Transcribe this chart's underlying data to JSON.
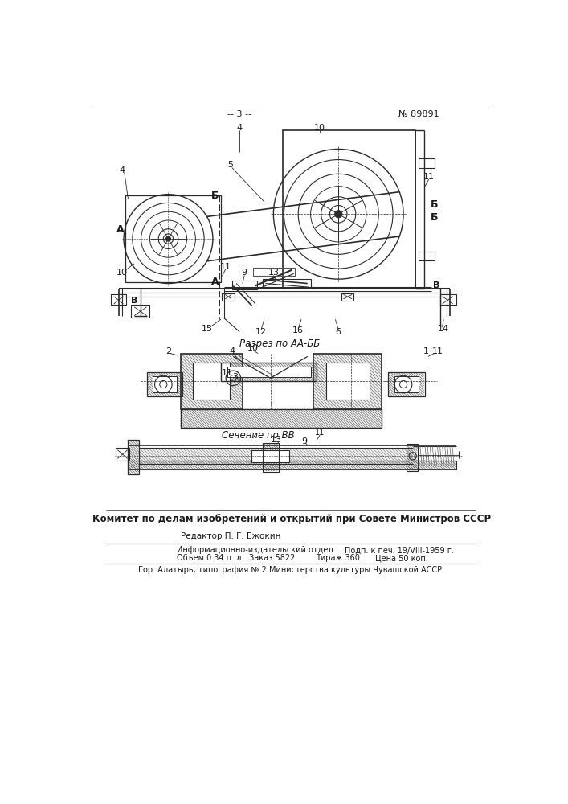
{
  "page_num": "-- 3 --",
  "patent_num": "№ 89891",
  "section_label_aa": "Разрез по АА-ББ",
  "section_label_bb": "Сечение по ВВ",
  "committee_text": "Комитет по делам изобретений и открытий при Совете Министров СССР",
  "editor_text": "Редактор П. Г. Ежокин",
  "info_line1_left": "Информационно-издательский отдел.",
  "info_line1_right": "Подп. к печ. 19/VIII-1959 г.",
  "info_line2_left": "Объем 0.34 п. л.",
  "info_line2_mid": "Заказ 5822.",
  "info_line2_right1": "Тираж 360.",
  "info_line2_right2": "Цена 50 коп.",
  "info_line3": "Гор. Алатырь, типография № 2 Министерства культуры Чувашской АССР.",
  "bg_color": "#ffffff",
  "line_color": "#2a2a2a",
  "text_color": "#1a1a1a"
}
